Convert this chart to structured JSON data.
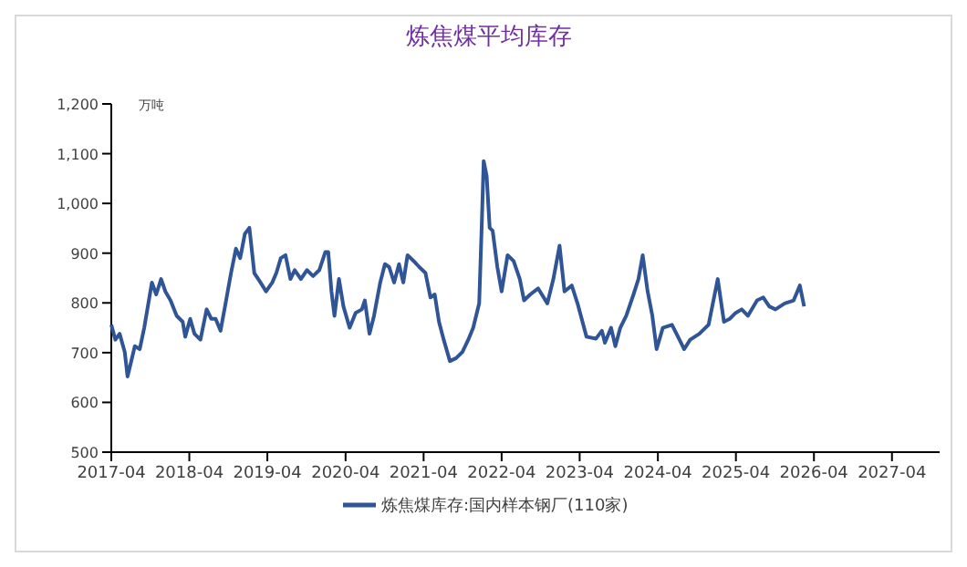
{
  "chart_data": {
    "type": "line",
    "title": "炼焦煤平均库存",
    "ylabel": "万吨",
    "legend": "bottom",
    "grid": false,
    "marker": "none",
    "line_style": "solid",
    "xlim": [
      "2017-04-01",
      "2027-11-10"
    ],
    "xticks": [
      "2017-04",
      "2018-04",
      "2019-04",
      "2020-04",
      "2021-04",
      "2022-04",
      "2023-04",
      "2024-04",
      "2025-04",
      "2026-04",
      "2027-04"
    ],
    "ylim": [
      500,
      1200
    ],
    "yticks": [
      500,
      600,
      700,
      800,
      900,
      {
        "value": 1000,
        "label": "1,000"
      },
      {
        "value": 1100,
        "label": "1,100"
      },
      {
        "value": 1200,
        "label": "1,200"
      }
    ],
    "x": [
      "2017-04-01",
      "2017-04-20",
      "2017-05-10",
      "2017-06-03",
      "2017-06-16",
      "2017-06-30",
      "2017-07-20",
      "2017-08-12",
      "2017-09-02",
      "2017-09-19",
      "2017-10-08",
      "2017-10-28",
      "2017-11-20",
      "2017-12-10",
      "2018-01-03",
      "2018-02-01",
      "2018-03-01",
      "2018-03-13",
      "2018-04-05",
      "2018-04-25",
      "2018-05-23",
      "2018-06-21",
      "2018-07-13",
      "2018-08-02",
      "2018-08-25",
      "2018-09-20",
      "2018-10-13",
      "2018-11-05",
      "2018-11-25",
      "2018-12-17",
      "2019-01-07",
      "2019-01-30",
      "2019-02-28",
      "2019-03-26",
      "2019-04-24",
      "2019-05-13",
      "2019-06-03",
      "2019-06-25",
      "2019-07-18",
      "2019-08-07",
      "2019-09-05",
      "2019-10-03",
      "2019-11-01",
      "2019-11-30",
      "2019-12-28",
      "2020-01-11",
      "2020-01-26",
      "2020-02-09",
      "2020-03-01",
      "2020-03-22",
      "2020-04-20",
      "2020-05-18",
      "2020-06-16",
      "2020-06-30",
      "2020-07-22",
      "2020-08-12",
      "2020-09-10",
      "2020-10-02",
      "2020-10-22",
      "2020-11-14",
      "2020-12-07",
      "2020-12-27",
      "2021-01-16",
      "2021-02-14",
      "2021-03-12",
      "2021-04-10",
      "2021-05-03",
      "2021-05-23",
      "2021-06-12",
      "2021-07-04",
      "2021-08-02",
      "2021-08-31",
      "2021-09-29",
      "2021-10-27",
      "2021-11-19",
      "2021-12-17",
      "2021-12-29",
      "2022-01-07",
      "2022-01-21",
      "2022-02-04",
      "2022-02-18",
      "2022-03-12",
      "2022-04-01",
      "2022-04-29",
      "2022-05-27",
      "2022-06-25",
      "2022-07-15",
      "2022-08-13",
      "2022-09-19",
      "2022-11-01",
      "2022-11-29",
      "2022-12-28",
      "2023-01-20",
      "2023-02-23",
      "2023-03-22",
      "2023-05-03",
      "2023-06-16",
      "2023-07-14",
      "2023-07-28",
      "2023-08-26",
      "2023-09-15",
      "2023-10-08",
      "2023-11-05",
      "2023-12-09",
      "2024-01-01",
      "2024-01-21",
      "2024-02-13",
      "2024-03-06",
      "2024-03-26",
      "2024-04-24",
      "2024-06-06",
      "2024-07-04",
      "2024-08-02",
      "2024-08-30",
      "2024-10-12",
      "2024-11-24",
      "2025-01-06",
      "2025-02-04",
      "2025-03-03",
      "2025-03-31",
      "2025-04-28",
      "2025-05-27",
      "2025-07-09",
      "2025-08-07",
      "2025-09-04",
      "2025-10-03",
      "2025-11-15",
      "2025-12-27",
      "2026-01-25",
      "2026-02-14"
    ],
    "series": [
      {
        "name": "炼焦煤库存:国内样本钢厂(110家)",
        "color": "#2f5597",
        "values": [
          756,
          726,
          738,
          701,
          652,
          677,
          713,
          707,
          750,
          793,
          841,
          817,
          848,
          823,
          805,
          774,
          762,
          732,
          768,
          738,
          726,
          787,
          768,
          768,
          744,
          805,
          860,
          909,
          890,
          939,
          951,
          860,
          841,
          823,
          841,
          860,
          890,
          896,
          848,
          866,
          848,
          866,
          854,
          866,
          902,
          902,
          823,
          774,
          848,
          793,
          750,
          780,
          787,
          805,
          738,
          774,
          841,
          878,
          872,
          841,
          878,
          841,
          896,
          884,
          872,
          860,
          811,
          817,
          762,
          726,
          683,
          689,
          701,
          726,
          750,
          799,
          957,
          1085,
          1055,
          951,
          945,
          872,
          823,
          896,
          884,
          848,
          805,
          817,
          829,
          799,
          848,
          915,
          823,
          835,
          799,
          732,
          728,
          744,
          720,
          750,
          713,
          750,
          774,
          817,
          848,
          896,
          823,
          774,
          707,
          750,
          756,
          732,
          707,
          726,
          738,
          756,
          848,
          762,
          768,
          780,
          787,
          774,
          805,
          811,
          793,
          787,
          799,
          805,
          835,
          793
        ]
      }
    ]
  }
}
